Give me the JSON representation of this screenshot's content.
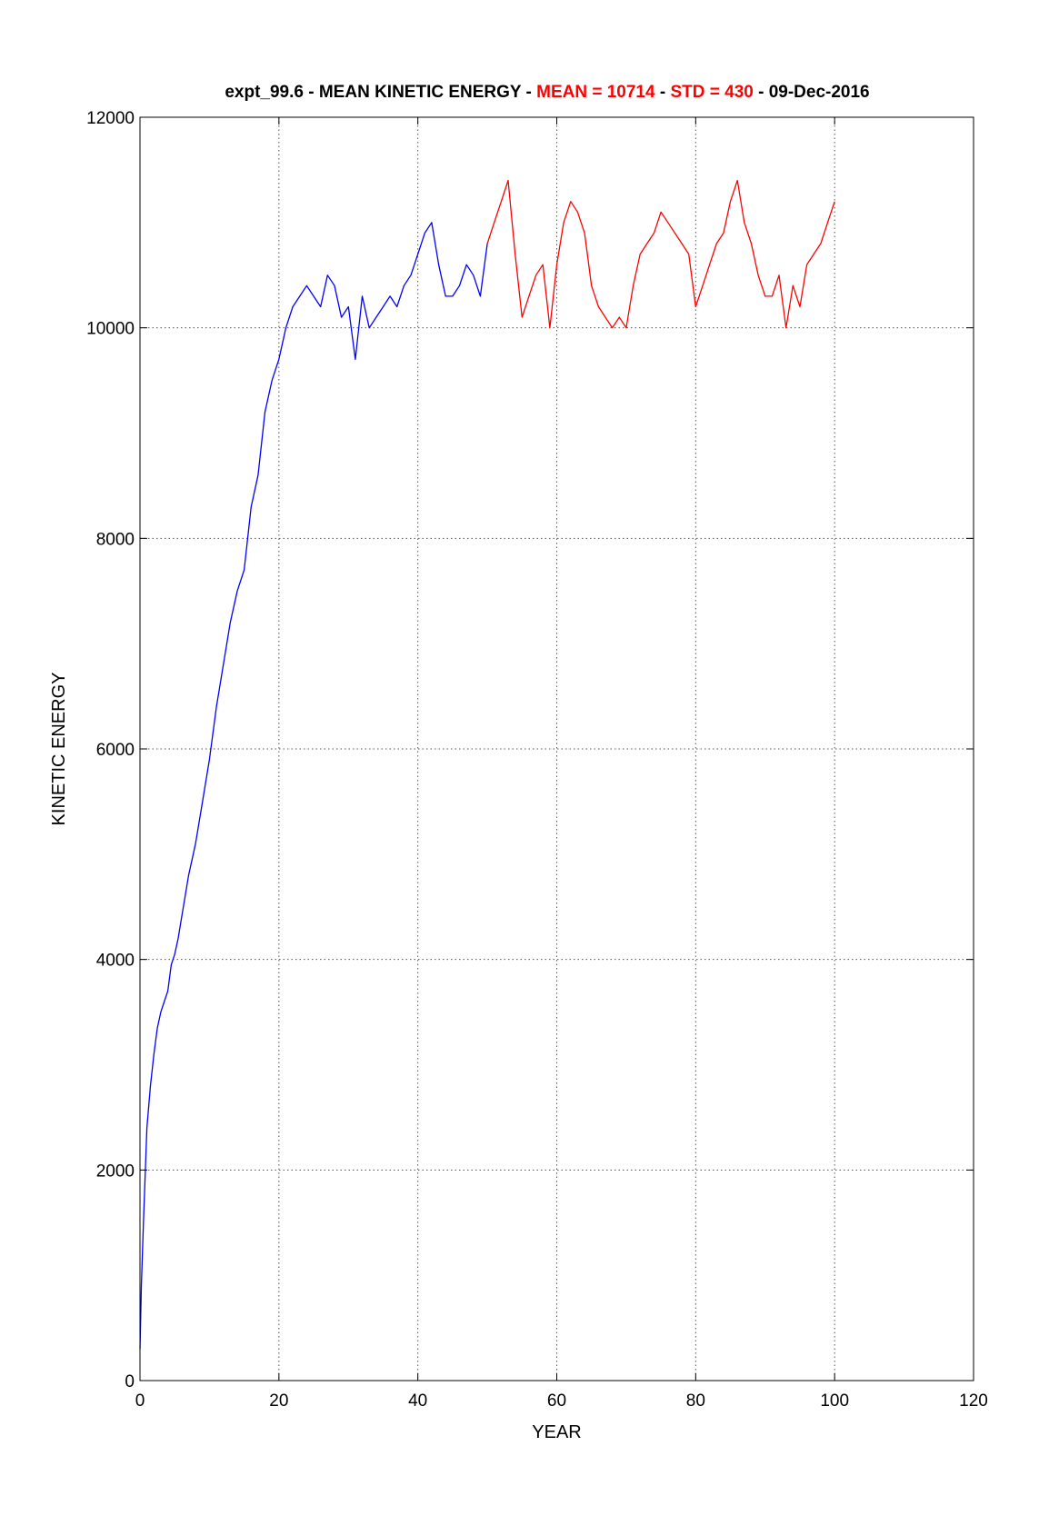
{
  "chart_data": {
    "type": "line",
    "title": {
      "part1": "expt_99.6 - MEAN KINETIC ENERGY - ",
      "part2": "MEAN = 10714",
      "part3": " - ",
      "part4": "STD =  430",
      "part5": " - 09-Dec-2016"
    },
    "title_colors": {
      "default": "#000000",
      "highlight": "#ff0000"
    },
    "xlabel": "YEAR",
    "ylabel": "KINETIC ENERGY",
    "xlim": [
      0,
      120
    ],
    "ylim": [
      0,
      12000
    ],
    "x_ticks": [
      0,
      20,
      40,
      60,
      80,
      100,
      120
    ],
    "y_ticks": [
      0,
      2000,
      4000,
      6000,
      8000,
      10000,
      12000
    ],
    "grid": true,
    "series": [
      {
        "color": "#0000ff",
        "x": [
          0,
          0.2,
          0.5,
          1,
          1.5,
          2,
          2.5,
          3,
          3.5,
          4,
          4.5,
          5,
          5.5,
          6,
          7,
          8,
          9,
          10,
          11,
          12,
          13,
          14,
          15,
          16,
          17,
          18,
          19,
          20,
          21,
          22,
          23,
          24,
          25,
          26,
          27,
          28,
          29,
          30,
          31,
          32,
          33,
          34,
          35,
          36,
          37,
          38,
          39,
          40,
          41,
          42,
          43,
          44,
          45,
          46,
          47,
          48,
          49,
          50
        ],
        "y": [
          300,
          900,
          1500,
          2400,
          2800,
          3100,
          3350,
          3500,
          3600,
          3700,
          3950,
          4050,
          4200,
          4400,
          4800,
          5100,
          5500,
          5900,
          6400,
          6800,
          7200,
          7500,
          7700,
          8300,
          8600,
          9200,
          9500,
          9700,
          10000,
          10200,
          10300,
          10400,
          10300,
          10200,
          10500,
          10400,
          10100,
          10200,
          9700,
          10300,
          10000,
          10100,
          10200,
          10300,
          10200,
          10400,
          10500,
          10700,
          10900,
          11000,
          10600,
          10300,
          10300,
          10400,
          10600,
          10500,
          10300,
          10800
        ]
      },
      {
        "color": "#ff0000",
        "x": [
          50,
          51,
          52,
          53,
          54,
          55,
          56,
          57,
          58,
          59,
          60,
          61,
          62,
          63,
          64,
          65,
          66,
          67,
          68,
          69,
          70,
          71,
          72,
          73,
          74,
          75,
          76,
          77,
          78,
          79,
          80,
          81,
          82,
          83,
          84,
          85,
          86,
          87,
          88,
          89,
          90,
          91,
          92,
          93,
          94,
          95,
          96,
          97,
          98,
          99,
          100
        ],
        "y": [
          10800,
          11000,
          11200,
          11400,
          10700,
          10100,
          10300,
          10500,
          10600,
          10000,
          10600,
          11000,
          11200,
          11100,
          10900,
          10400,
          10200,
          10100,
          10000,
          10100,
          10000,
          10400,
          10700,
          10800,
          10900,
          11100,
          11000,
          10900,
          10800,
          10700,
          10200,
          10400,
          10600,
          10800,
          10900,
          11200,
          11400,
          11000,
          10800,
          10500,
          10300,
          10300,
          10500,
          10000,
          10400,
          10200,
          10600,
          10700,
          10800,
          11000,
          11200
        ]
      }
    ]
  }
}
